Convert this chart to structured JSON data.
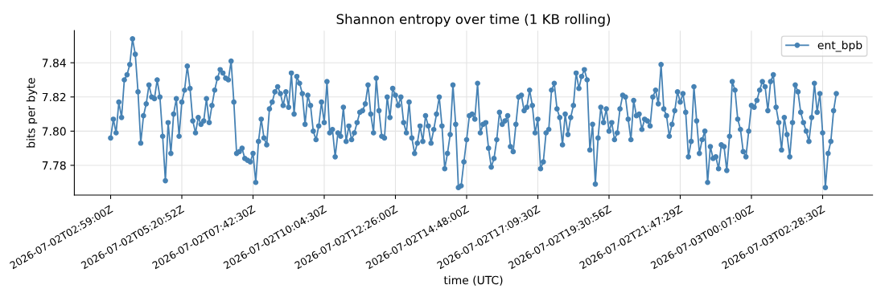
{
  "chart_data": {
    "type": "line",
    "title": "Shannon entropy over time (1 KB rolling)",
    "xlabel": "time (UTC)",
    "ylabel": "bits per byte",
    "ylim": [
      7.7626,
      7.8588
    ],
    "yticks": [
      7.78,
      {
        "value": 7.8,
        "label": "7.80"
      },
      7.82,
      7.84
    ],
    "categories": [
      "2026-07-02T02:59:00Z",
      null,
      null,
      null,
      null,
      null,
      null,
      null,
      null,
      null,
      null,
      null,
      null,
      null,
      null,
      null,
      null,
      null,
      null,
      null,
      null,
      null,
      null,
      null,
      null,
      null,
      "2026-07-02T05:20:52Z",
      null,
      null,
      null,
      null,
      null,
      null,
      null,
      null,
      null,
      null,
      null,
      null,
      null,
      null,
      null,
      null,
      null,
      null,
      null,
      null,
      null,
      null,
      null,
      null,
      null,
      "2026-07-02T07:42:30Z",
      null,
      null,
      null,
      null,
      null,
      null,
      null,
      null,
      null,
      null,
      null,
      null,
      null,
      null,
      null,
      null,
      null,
      null,
      null,
      null,
      null,
      null,
      null,
      null,
      null,
      "2026-07-02T10:04:30Z",
      null,
      null,
      null,
      null,
      null,
      null,
      null,
      null,
      null,
      null,
      null,
      null,
      null,
      null,
      null,
      null,
      null,
      null,
      null,
      null,
      null,
      null,
      null,
      null,
      null,
      "2026-07-02T12:26:00Z",
      null,
      null,
      null,
      null,
      null,
      null,
      null,
      null,
      null,
      null,
      null,
      null,
      null,
      null,
      null,
      null,
      null,
      null,
      null,
      null,
      null,
      null,
      null,
      null,
      null,
      "2026-07-02T14:48:00Z",
      null,
      null,
      null,
      null,
      null,
      null,
      null,
      null,
      null,
      null,
      null,
      null,
      null,
      null,
      null,
      null,
      null,
      null,
      null,
      null,
      null,
      null,
      null,
      null,
      null,
      "2026-07-02T17:09:30Z",
      null,
      null,
      null,
      null,
      null,
      null,
      null,
      null,
      null,
      null,
      null,
      null,
      null,
      null,
      null,
      null,
      null,
      null,
      null,
      null,
      null,
      null,
      null,
      null,
      null,
      "2026-07-02T19:30:56Z",
      null,
      null,
      null,
      null,
      null,
      null,
      null,
      null,
      null,
      null,
      null,
      null,
      null,
      null,
      null,
      null,
      null,
      null,
      null,
      null,
      null,
      null,
      null,
      null,
      null,
      "2026-07-02T21:47:29Z",
      null,
      null,
      null,
      null,
      null,
      null,
      null,
      null,
      null,
      null,
      null,
      null,
      null,
      null,
      null,
      null,
      null,
      null,
      null,
      null,
      null,
      null,
      null,
      null,
      null,
      "2026-07-03T00:07:00Z",
      null,
      null,
      null,
      null,
      null,
      null,
      null,
      null,
      null,
      null,
      null,
      null,
      null,
      null,
      null,
      null,
      null,
      null,
      null,
      null,
      null,
      null,
      null,
      null,
      null,
      "2026-07-03T02:28:30Z",
      null,
      null,
      null,
      null,
      null
    ],
    "grid": true,
    "legend": "top right",
    "marker": "circle",
    "line_style": "solid",
    "series": [
      {
        "name": "ent_bpb",
        "color": "#4682b4",
        "values": [
          7.796,
          7.807,
          7.799,
          7.817,
          7.808,
          7.83,
          7.833,
          7.839,
          7.854,
          7.845,
          7.823,
          7.793,
          7.809,
          7.816,
          7.827,
          7.82,
          7.819,
          7.83,
          7.82,
          7.797,
          7.771,
          7.805,
          7.787,
          7.81,
          7.819,
          7.797,
          7.817,
          7.824,
          7.838,
          7.825,
          7.806,
          7.799,
          7.808,
          7.804,
          7.806,
          7.819,
          7.805,
          7.815,
          7.824,
          7.831,
          7.836,
          7.834,
          7.831,
          7.83,
          7.841,
          7.817,
          7.787,
          7.788,
          7.79,
          7.784,
          7.783,
          7.782,
          7.787,
          7.77,
          7.794,
          7.807,
          7.796,
          7.792,
          7.813,
          7.817,
          7.823,
          7.826,
          7.822,
          7.815,
          7.823,
          7.814,
          7.834,
          7.81,
          7.832,
          7.828,
          7.822,
          7.804,
          7.821,
          7.815,
          7.8,
          7.795,
          7.803,
          7.817,
          7.805,
          7.829,
          7.799,
          7.801,
          7.785,
          7.799,
          7.797,
          7.814,
          7.794,
          7.803,
          7.795,
          7.799,
          7.805,
          7.811,
          7.812,
          7.816,
          7.827,
          7.81,
          7.799,
          7.831,
          7.812,
          7.797,
          7.796,
          7.82,
          7.808,
          7.825,
          7.821,
          7.815,
          7.82,
          7.805,
          7.799,
          7.817,
          7.796,
          7.787,
          7.793,
          7.803,
          7.794,
          7.809,
          7.803,
          7.793,
          7.801,
          7.81,
          7.82,
          7.803,
          7.778,
          7.787,
          7.798,
          7.827,
          7.804,
          7.767,
          7.768,
          7.782,
          7.795,
          7.809,
          7.81,
          7.807,
          7.828,
          7.799,
          7.804,
          7.805,
          7.79,
          7.779,
          7.784,
          7.795,
          7.811,
          7.804,
          7.806,
          7.809,
          7.791,
          7.788,
          7.804,
          7.82,
          7.821,
          7.812,
          7.814,
          7.824,
          7.815,
          7.799,
          7.807,
          7.778,
          7.782,
          7.799,
          7.801,
          7.824,
          7.828,
          7.813,
          7.808,
          7.792,
          7.81,
          7.798,
          7.808,
          7.815,
          7.834,
          7.825,
          7.832,
          7.836,
          7.83,
          7.789,
          7.804,
          7.769,
          7.796,
          7.814,
          7.805,
          7.813,
          7.8,
          7.805,
          7.795,
          7.799,
          7.813,
          7.821,
          7.82,
          7.807,
          7.795,
          7.818,
          7.809,
          7.81,
          7.801,
          7.807,
          7.806,
          7.803,
          7.82,
          7.824,
          7.816,
          7.839,
          7.813,
          7.809,
          7.797,
          7.804,
          7.812,
          7.823,
          7.817,
          7.822,
          7.811,
          7.785,
          7.794,
          7.826,
          7.806,
          7.787,
          7.795,
          7.8,
          7.77,
          7.791,
          7.784,
          7.785,
          7.778,
          7.792,
          7.791,
          7.777,
          7.797,
          7.829,
          7.824,
          7.807,
          7.801,
          7.788,
          7.785,
          7.8,
          7.815,
          7.814,
          7.818,
          7.824,
          7.829,
          7.826,
          7.812,
          7.829,
          7.833,
          7.814,
          7.805,
          7.789,
          7.808,
          7.798,
          7.785,
          7.805,
          7.827,
          7.823,
          7.811,
          7.805,
          7.8,
          7.794,
          7.808,
          7.828,
          7.811,
          7.822,
          7.799,
          7.767,
          7.787,
          7.794,
          7.812,
          7.822
        ]
      }
    ]
  }
}
